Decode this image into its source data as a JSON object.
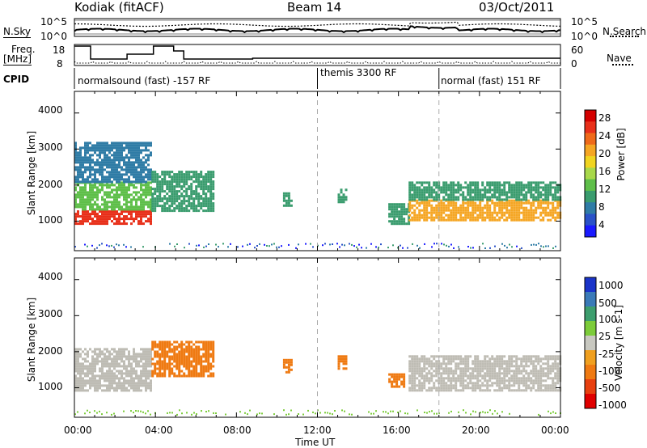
{
  "header": {
    "station": "Kodiak (fitACF)",
    "beam": "Beam 14",
    "date": "03/Oct/2011"
  },
  "side_labels": {
    "nsky": "N.Sky",
    "nsearch": "N.Search",
    "freq_line1": "Freq.",
    "freq_line2": "[MHz]",
    "nave": "Nave",
    "cpid": "CPID"
  },
  "cpid_segments": [
    {
      "label": "normalsound (fast) -157 RF"
    },
    {
      "label": "themis 3300 RF"
    },
    {
      "label": "normal (fast) 151 RF"
    }
  ],
  "noise_axis": {
    "left_ticks": [
      "10^5",
      "10^0"
    ],
    "right_ticks": [
      "10^5",
      "10^0"
    ]
  },
  "freq_axis": {
    "left_ticks": [
      "18",
      "8"
    ],
    "right_ticks": [
      "60",
      "0"
    ]
  },
  "colors": {
    "power_scale": [
      "#1a1aff",
      "#2a52c8",
      "#2f7ca6",
      "#3a9c6e",
      "#5fbf4a",
      "#a8d84a",
      "#f0d420",
      "#f5a623",
      "#ef6a1a",
      "#e8301a",
      "#d40000"
    ],
    "velocity_scale": [
      "#1a34c9",
      "#3a7ab8",
      "#3d9e6e",
      "#7ccc3a",
      "#c8c8c0",
      "#f0a020",
      "#ef7a12",
      "#e84010",
      "#e00000"
    ],
    "ground_scatter": "#bebcb4"
  },
  "chart_data": [
    {
      "type": "heatmap",
      "panel": "power",
      "xlabel": "Time UT",
      "ylabel": "Slant Range [km]",
      "x_ticks": [
        "00:00",
        "04:00",
        "08:00",
        "12:00",
        "16:00",
        "20:00",
        "00:00"
      ],
      "y_ticks": [
        "1000",
        "2000",
        "3000",
        "4000"
      ],
      "colorbar_label": "Power [dB]",
      "colorbar_ticks": [
        "4",
        "8",
        "12",
        "16",
        "20",
        "24",
        "28"
      ],
      "xlim": [
        0,
        24
      ],
      "ylim": [
        180,
        4600
      ],
      "regions": [
        {
          "t": [
            0.0,
            3.8
          ],
          "r": [
            900,
            1300
          ],
          "value": 26
        },
        {
          "t": [
            0.0,
            3.8
          ],
          "r": [
            1300,
            2100
          ],
          "value": 12
        },
        {
          "t": [
            0.0,
            3.8
          ],
          "r": [
            2100,
            3200
          ],
          "value": 6
        },
        {
          "t": [
            3.8,
            6.8
          ],
          "r": [
            1300,
            2400
          ],
          "value": 10
        },
        {
          "t": [
            10.3,
            10.7
          ],
          "r": [
            1400,
            1800
          ],
          "value": 9
        },
        {
          "t": [
            13.0,
            13.4
          ],
          "r": [
            1500,
            1900
          ],
          "value": 10
        },
        {
          "t": [
            15.5,
            16.5
          ],
          "r": [
            900,
            1500
          ],
          "value": 8
        },
        {
          "t": [
            16.5,
            24.0
          ],
          "r": [
            1000,
            1600
          ],
          "value": 22
        },
        {
          "t": [
            16.5,
            24.0
          ],
          "r": [
            1600,
            2100
          ],
          "value": 10
        }
      ]
    },
    {
      "type": "heatmap",
      "panel": "velocity",
      "xlabel": "Time UT",
      "ylabel": "Slant Range [km]",
      "x_ticks": [
        "00:00",
        "04:00",
        "08:00",
        "12:00",
        "16:00",
        "20:00",
        "00:00"
      ],
      "y_ticks": [
        "1000",
        "2000",
        "3000",
        "4000"
      ],
      "colorbar_label": "Velocity [m s-1]",
      "colorbar_ticks": [
        "1000",
        "500",
        "100",
        "25",
        "-25",
        "-100",
        "-500",
        "-1000"
      ],
      "xlim": [
        0,
        24
      ],
      "ylim": [
        180,
        4600
      ],
      "regions": [
        {
          "t": [
            0.0,
            3.8
          ],
          "r": [
            900,
            2100
          ],
          "value": 0,
          "ground_scatter": true
        },
        {
          "t": [
            3.8,
            6.8
          ],
          "r": [
            1300,
            2300
          ],
          "value": -150
        },
        {
          "t": [
            10.3,
            10.7
          ],
          "r": [
            1400,
            1800
          ],
          "value": -400
        },
        {
          "t": [
            13.0,
            13.4
          ],
          "r": [
            1500,
            1900
          ],
          "value": -400
        },
        {
          "t": [
            15.5,
            16.3
          ],
          "r": [
            1000,
            1400
          ],
          "value": -250
        },
        {
          "t": [
            16.5,
            24.0
          ],
          "r": [
            900,
            1900
          ],
          "value": 0,
          "ground_scatter": true
        }
      ]
    }
  ]
}
